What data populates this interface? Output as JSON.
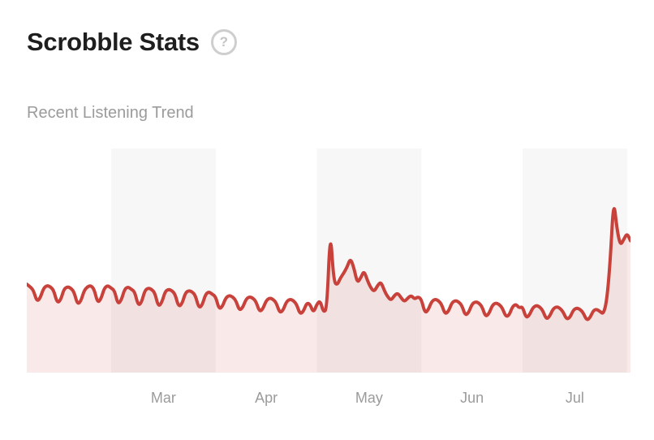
{
  "header": {
    "title": "Scrobble Stats",
    "help_glyph": "?"
  },
  "chart": {
    "subtitle": "Recent Listening Trend"
  },
  "chart_data": {
    "type": "area",
    "title": "Recent Listening Trend",
    "xlabel": "",
    "ylabel": "",
    "x_tick_labels": [
      "Mar",
      "Apr",
      "May",
      "Jun",
      "Jul"
    ],
    "x_start": "early Feb",
    "x_end": "early Aug",
    "x_unit": "day",
    "ylim": [
      0,
      180
    ],
    "y_axis_visible": false,
    "grid": false,
    "legend": "none",
    "line_color": "#c8413a",
    "fill_color": "rgba(200,65,58,0.11)",
    "band_color": "#f7f7f7",
    "months": [
      {
        "label": "",
        "start_day": 0,
        "end_day": 25,
        "banded": false
      },
      {
        "label": "Mar",
        "start_day": 25,
        "end_day": 56,
        "banded": true
      },
      {
        "label": "Apr",
        "start_day": 56,
        "end_day": 86,
        "banded": false
      },
      {
        "label": "May",
        "start_day": 86,
        "end_day": 117,
        "banded": true
      },
      {
        "label": "Jun",
        "start_day": 117,
        "end_day": 147,
        "banded": false
      },
      {
        "label": "Jul",
        "start_day": 147,
        "end_day": 178,
        "banded": true
      },
      {
        "label": "",
        "start_day": 178,
        "end_day": 179,
        "banded": false
      }
    ],
    "values": [
      71,
      69,
      66,
      57,
      60,
      68,
      70,
      69,
      66,
      56,
      58,
      67,
      69,
      68,
      65,
      55,
      57,
      66,
      69,
      70,
      67,
      56,
      59,
      68,
      70,
      68,
      66,
      55,
      58,
      67,
      69,
      67,
      65,
      54,
      56,
      66,
      68,
      67,
      64,
      53,
      56,
      65,
      67,
      66,
      63,
      53,
      55,
      64,
      66,
      65,
      62,
      52,
      54,
      63,
      65,
      63,
      61,
      51,
      53,
      60,
      62,
      61,
      58,
      50,
      52,
      59,
      61,
      60,
      57,
      49,
      51,
      58,
      60,
      59,
      56,
      48,
      50,
      57,
      59,
      58,
      55,
      47,
      49,
      56,
      55,
      48,
      55,
      58,
      48,
      52,
      116,
      74,
      70,
      76,
      80,
      85,
      92,
      84,
      72,
      76,
      82,
      74,
      68,
      65,
      70,
      73,
      66,
      61,
      58,
      62,
      64,
      60,
      57,
      60,
      62,
      59,
      61,
      59,
      48,
      50,
      57,
      59,
      58,
      55,
      47,
      49,
      56,
      58,
      57,
      54,
      46,
      48,
      55,
      57,
      56,
      53,
      45,
      47,
      54,
      56,
      55,
      52,
      45,
      46,
      53,
      55,
      52,
      53,
      44,
      46,
      52,
      54,
      53,
      50,
      43,
      45,
      51,
      53,
      52,
      49,
      43,
      44,
      50,
      52,
      51,
      48,
      42,
      44,
      50,
      51,
      49,
      47,
      58,
      90,
      140,
      115,
      102,
      107,
      112,
      106
    ]
  }
}
